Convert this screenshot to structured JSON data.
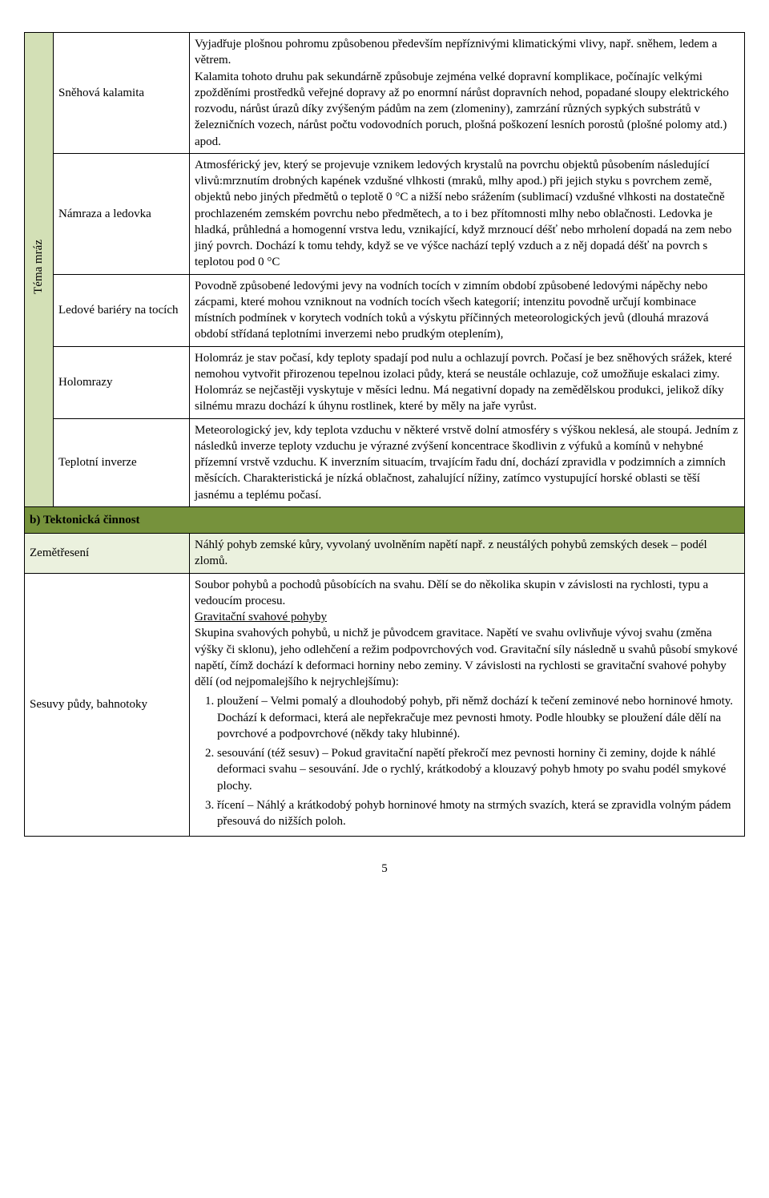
{
  "colors": {
    "mraz_bg": "#d3e0b6",
    "section_bg": "#76923c",
    "zem_bg": "#ebf1de"
  },
  "theme_label": "Téma mráz",
  "rows": [
    {
      "label": "Sněhová kalamita",
      "desc": "Vyjadřuje plošnou pohromu způsobenou především nepříznivými klimatickými vlivy, např. sněhem, ledem a větrem.\nKalamita tohoto druhu pak sekundárně způsobuje zejména velké dopravní komplikace, počínajíc velkými zpožděními prostředků veřejné dopravy až po enormní nárůst dopravních nehod, popadané sloupy elektrického rozvodu, nárůst úrazů díky zvýšeným pádům na zem (zlomeniny), zamrzání různých sypkých substrátů v železničních vozech, nárůst počtu vodovodních poruch, plošná poškození lesních porostů (plošné polomy atd.) apod."
    },
    {
      "label": "Námraza a ledovka",
      "desc": "Atmosférický jev, který se projevuje vznikem ledových krystalů na povrchu objektů působením následující vlivů:mrznutím drobných kapének vzdušné vlhkosti (mraků, mlhy apod.) při jejich styku s povrchem země, objektů nebo jiných předmětů o teplotě 0 °C a nižší nebo srážením (sublimací) vzdušné vlhkosti na dostatečně prochlazeném zemském povrchu nebo předmětech, a to i bez přítomnosti mlhy nebo oblačnosti. Ledovka je hladká, průhledná a homogenní vrstva ledu, vznikající, když mrznoucí déšť nebo mrholení dopadá na zem nebo jiný povrch. Dochází k tomu tehdy, když se ve výšce nachází teplý vzduch a z něj dopadá déšť na povrch s teplotou pod 0 °C"
    },
    {
      "label": "Ledové bariéry na tocích",
      "desc": "Povodně způsobené ledovými jevy na vodních tocích v zimním období způsobené ledovými nápěchy nebo zácpami, které mohou vzniknout na vodních tocích všech kategorií; intenzitu povodně určují kombinace místních podmínek v korytech vodních toků a výskytu příčinných meteorologických jevů (dlouhá mrazová období střídaná teplotními inverzemi nebo prudkým oteplením),"
    },
    {
      "label": "Holomrazy",
      "desc": "Holomráz je stav počasí, kdy teploty spadají pod nulu a ochlazují povrch. Počasí je bez sněhových srážek, které nemohou vytvořit přirozenou tepelnou izolaci půdy, která se neustále ochlazuje, což umožňuje eskalaci zimy. Holomráz se nejčastěji vyskytuje v měsíci lednu. Má negativní dopady na zemědělskou produkci, jelikož díky silnému mrazu dochází k úhynu rostlinek, které by měly na jaře vyrůst."
    },
    {
      "label": "Teplotní inverze",
      "desc": "Meteorologický jev, kdy teplota vzduchu v některé vrstvě dolní atmosféry s výškou neklesá, ale stoupá. Jedním z následků inverze teploty vzduchu je výrazné zvýšení koncentrace škodlivin z výfuků a komínů v nehybné přízemní vrstvě vzduchu. K inverzním situacím, trvajícím řadu dní, dochází zpravidla v podzimních a zimních měsících. Charakteristická je nízká oblačnost, zahalující nížiny, zatímco vystupující horské oblasti se těší jasnému a teplému počasí."
    }
  ],
  "section_b": "b)   Tektonická činnost",
  "zem": {
    "label": "Zemětřesení",
    "desc": "Náhlý pohyb zemské kůry, vyvolaný uvolněním napětí  např. z neustálých pohybů zemských desek – podél zlomů."
  },
  "sesuvy": {
    "label": "Sesuvy půdy, bahnotoky",
    "intro1": "Soubor pohybů a pochodů působících na svahu. Dělí se do několika skupin v závislosti na rychlosti, typu a vedoucím procesu.",
    "heading": "Gravitační svahové pohyby",
    "intro2": "Skupina svahových pohybů, u nichž je původcem gravitace. Napětí ve svahu ovlivňuje vývoj svahu (změna výšky či sklonu), jeho odlehčení a režim podpovrchových vod. Gravitační síly následně u svahů působí smykové napětí, čímž dochází k deformaci horniny nebo zeminy. V závislosti na rychlosti se gravitační svahové pohyby dělí (od nejpomalejšího k nejrychlejšímu):",
    "items": [
      "ploužení – Velmi pomalý a dlouhodobý pohyb, při němž dochází k tečení zeminové nebo horninové hmoty. Dochází k deformaci, která ale nepřekračuje mez pevnosti hmoty. Podle hloubky se ploužení dále dělí na povrchové a podpovrchové (někdy taky hlubinné).",
      "sesouvání (též sesuv) – Pokud gravitační napětí překročí mez pevnosti horniny či zeminy, dojde k náhlé deformaci svahu – sesouvání. Jde o rychlý, krátkodobý a klouzavý pohyb hmoty po svahu podél smykové plochy.",
      "řícení – Náhlý a krátkodobý pohyb horninové hmoty na strmých svazích, která se zpravidla volným pádem přesouvá do nižších poloh."
    ]
  },
  "page": "5"
}
